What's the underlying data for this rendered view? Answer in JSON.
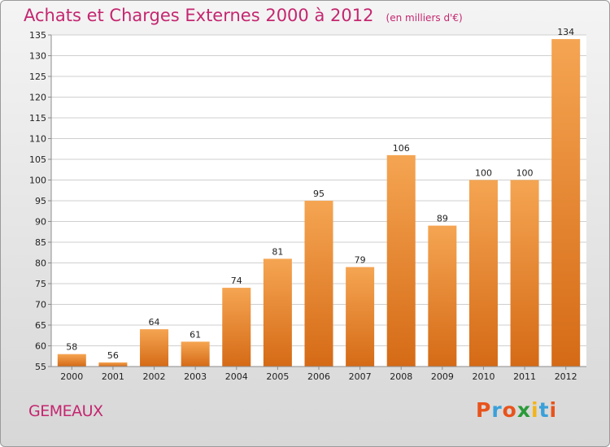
{
  "header": {
    "title": "Achats et Charges Externes 2000 à 2012",
    "unit": "(en milliers d'€)"
  },
  "footer": {
    "commune": "GEMEAUX",
    "logo_text": "Proxiti",
    "logo_colors": [
      "#e8531c",
      "#3aa0d9",
      "#e8531c",
      "#2a9a3a",
      "#f2b418",
      "#3aa0d9",
      "#e8531c"
    ]
  },
  "colors": {
    "title": "#c4266f",
    "bar_top": "#f5a552",
    "bar_bottom": "#d56a16",
    "grid": "#cfcfcf",
    "axis": "#8c8c8c"
  },
  "chart_data": {
    "type": "bar",
    "title": "Achats et Charges Externes 2000 à 2012",
    "subtitle": "(en milliers d'€)",
    "categories": [
      "2000",
      "2001",
      "2002",
      "2003",
      "2004",
      "2005",
      "2006",
      "2007",
      "2008",
      "2009",
      "2010",
      "2011",
      "2012"
    ],
    "values": [
      58,
      56,
      64,
      61,
      74,
      81,
      95,
      79,
      106,
      89,
      100,
      100,
      134
    ],
    "ylim": [
      55,
      135
    ],
    "ytick_step": 5,
    "grid": true,
    "legend": "none"
  }
}
